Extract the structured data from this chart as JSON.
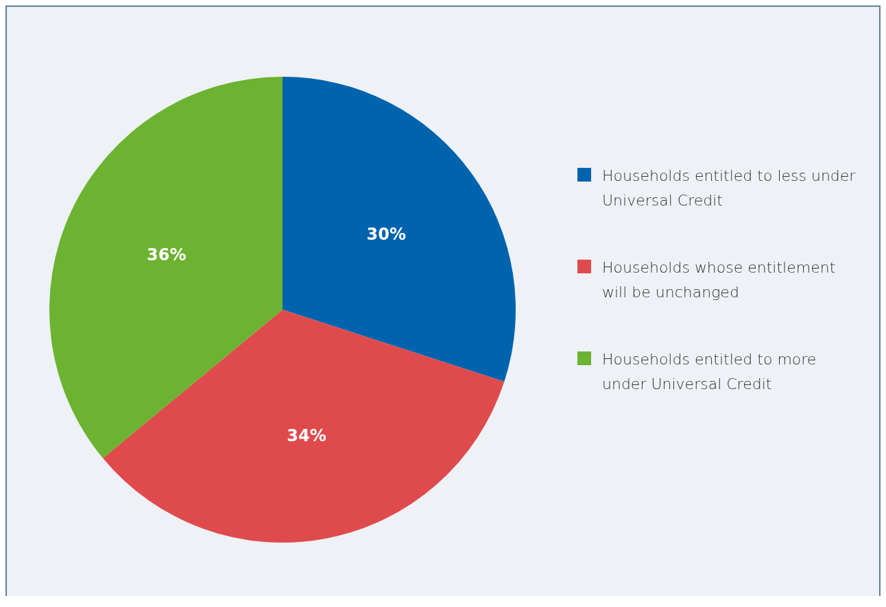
{
  "chart_data": {
    "type": "pie",
    "categories": [
      "Households entitled to less under Universal Credit",
      "Households whose entitlement will be unchanged",
      "Households entitled to more under Universal Credit"
    ],
    "values": [
      30,
      34,
      36
    ],
    "colors": [
      "#0063ae",
      "#df4b4d",
      "#6bb330"
    ],
    "value_labels": [
      "30%",
      "34%",
      "36%"
    ],
    "legend": "right"
  }
}
